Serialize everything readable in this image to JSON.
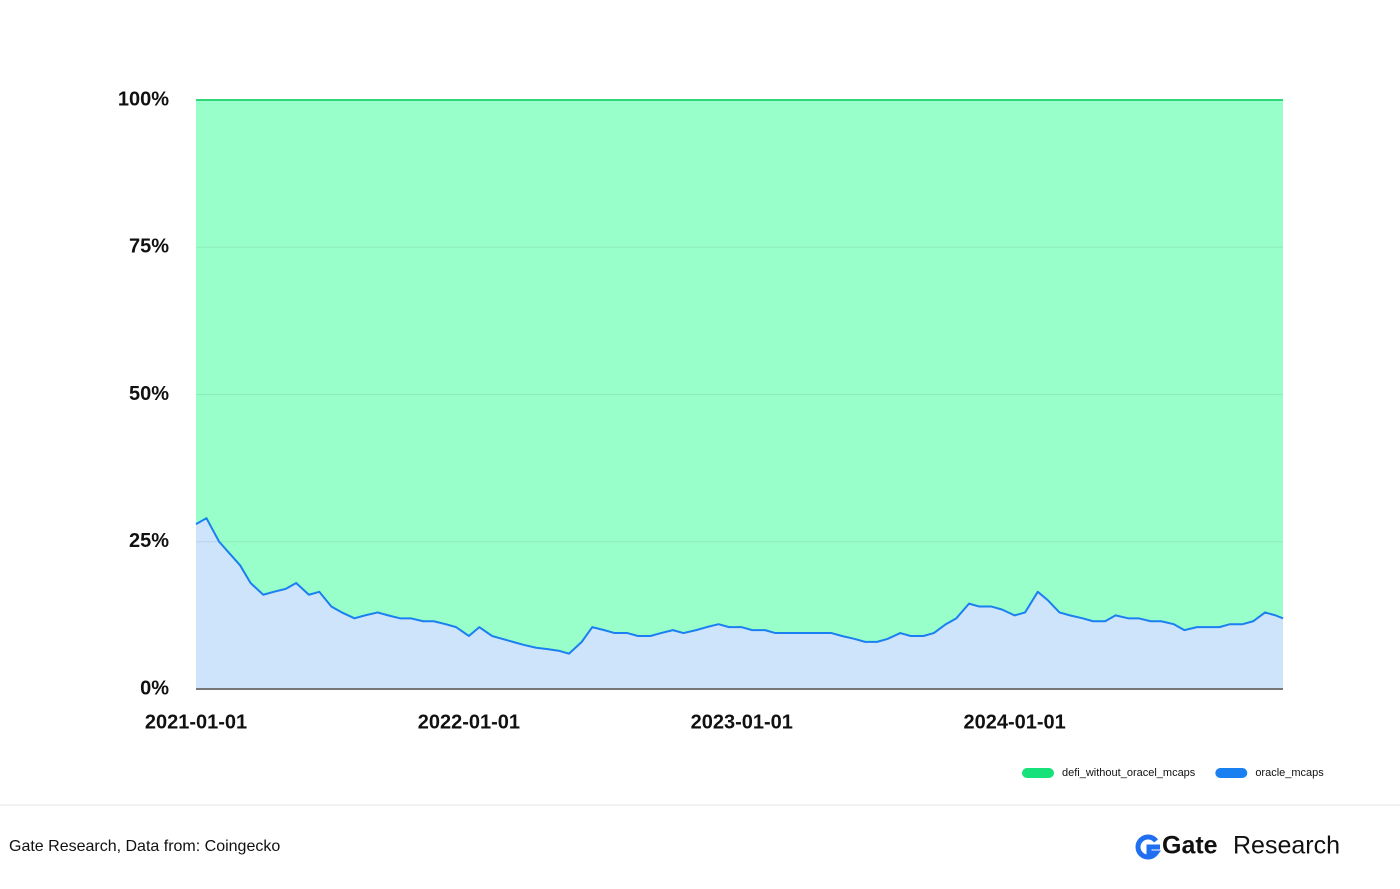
{
  "chart_data": {
    "type": "stacked-area",
    "x": [
      "2021-01-01",
      "2021-01-15",
      "2021-02-01",
      "2021-02-15",
      "2021-03-01",
      "2021-03-15",
      "2021-04-01",
      "2021-04-15",
      "2021-05-01",
      "2021-05-15",
      "2021-06-01",
      "2021-06-15",
      "2021-07-01",
      "2021-07-15",
      "2021-08-01",
      "2021-08-15",
      "2021-09-01",
      "2021-09-15",
      "2021-10-01",
      "2021-10-15",
      "2021-11-01",
      "2021-11-15",
      "2021-12-01",
      "2021-12-15",
      "2022-01-01",
      "2022-01-15",
      "2022-02-01",
      "2022-02-15",
      "2022-03-01",
      "2022-03-15",
      "2022-04-01",
      "2022-04-15",
      "2022-05-01",
      "2022-05-15",
      "2022-06-01",
      "2022-06-15",
      "2022-07-01",
      "2022-07-15",
      "2022-08-01",
      "2022-08-15",
      "2022-09-01",
      "2022-09-15",
      "2022-10-01",
      "2022-10-15",
      "2022-11-01",
      "2022-11-15",
      "2022-12-01",
      "2022-12-15",
      "2023-01-01",
      "2023-01-15",
      "2023-02-01",
      "2023-02-15",
      "2023-03-01",
      "2023-03-15",
      "2023-04-01",
      "2023-04-15",
      "2023-05-01",
      "2023-05-15",
      "2023-06-01",
      "2023-06-15",
      "2023-07-01",
      "2023-07-15",
      "2023-08-01",
      "2023-08-15",
      "2023-09-01",
      "2023-09-15",
      "2023-10-01",
      "2023-10-15",
      "2023-11-01",
      "2023-11-15",
      "2023-12-01",
      "2023-12-15",
      "2024-01-01",
      "2024-01-15",
      "2024-02-01",
      "2024-02-15",
      "2024-03-01",
      "2024-03-15",
      "2024-04-01",
      "2024-04-15",
      "2024-05-01",
      "2024-05-15",
      "2024-06-01",
      "2024-06-15",
      "2024-07-01",
      "2024-07-15",
      "2024-08-01",
      "2024-08-15",
      "2024-09-01",
      "2024-09-15",
      "2024-10-01",
      "2024-10-15",
      "2024-11-01",
      "2024-11-15",
      "2024-12-01",
      "2024-12-15",
      "2024-12-25"
    ],
    "series": [
      {
        "name": "oracle_mcaps",
        "color": "#1a7ff0",
        "fill": "#cde4fb",
        "values": [
          28,
          29,
          25,
          23,
          21,
          18,
          16,
          16.5,
          17,
          18,
          16,
          16.5,
          14,
          13,
          12,
          12.5,
          13,
          12.5,
          12,
          12,
          11.5,
          11.5,
          11,
          10.5,
          9,
          10.5,
          9,
          8.5,
          8,
          7.5,
          7,
          6.8,
          6.5,
          6,
          8,
          10.5,
          10,
          9.5,
          9.5,
          9,
          9,
          9.5,
          10,
          9.5,
          10,
          10.5,
          11,
          10.5,
          10.5,
          10,
          10,
          9.5,
          9.5,
          9.5,
          9.5,
          9.5,
          9.5,
          9,
          8.5,
          8,
          8,
          8.5,
          9.5,
          9,
          9,
          9.5,
          11,
          12,
          14.5,
          14,
          14,
          13.5,
          12.5,
          13,
          16.5,
          15,
          13,
          12.5,
          12,
          11.5,
          11.5,
          12.5,
          12,
          12,
          11.5,
          11.5,
          11,
          10,
          10.5,
          10.5,
          10.5,
          11,
          11,
          11.5,
          13,
          12.5,
          12
        ]
      },
      {
        "name": "defi_without_oracel_mcaps",
        "color": "#2fd67a",
        "fill": "#99ffca",
        "legend_color": "#17e27a",
        "values": [
          72,
          71,
          75,
          77,
          79,
          82,
          84,
          83.5,
          83,
          82,
          84,
          83.5,
          86,
          87,
          88,
          87.5,
          87,
          87.5,
          88,
          88,
          88.5,
          88.5,
          89,
          89.5,
          91,
          89.5,
          91,
          91.5,
          92,
          92.5,
          93,
          93.2,
          93.5,
          94,
          92,
          89.5,
          90,
          90.5,
          90.5,
          91,
          91,
          90.5,
          90,
          90.5,
          90,
          89.5,
          89,
          89.5,
          89.5,
          90,
          90,
          90.5,
          90.5,
          90.5,
          90.5,
          90.5,
          90.5,
          91,
          91.5,
          92,
          92,
          91.5,
          90.5,
          91,
          91,
          90.5,
          89,
          88,
          85.5,
          86,
          86,
          86.5,
          87.5,
          87,
          83.5,
          85,
          87,
          87.5,
          88,
          88.5,
          88.5,
          87.5,
          88,
          88,
          88.5,
          88.5,
          89,
          90,
          89.5,
          89.5,
          89.5,
          89,
          89,
          88.5,
          87,
          87.5,
          88
        ]
      }
    ],
    "xlim": [
      "2021-01-01",
      "2024-12-25"
    ],
    "xticks": [
      "2021-01-01",
      "2022-01-01",
      "2023-01-01",
      "2024-01-01"
    ],
    "ylim": [
      0,
      100
    ],
    "yticks": [
      {
        "value": 0,
        "label": "0%"
      },
      {
        "value": 25,
        "label": "25%"
      },
      {
        "value": 50,
        "label": "50%"
      },
      {
        "value": 75,
        "label": "75%"
      },
      {
        "value": 100,
        "label": "100%"
      }
    ],
    "grid": true,
    "legend": "bottom-right"
  },
  "footer": {
    "source": "Gate Research, Data from: Coingecko",
    "brand": "Gate",
    "brand_suffix": "Research"
  }
}
